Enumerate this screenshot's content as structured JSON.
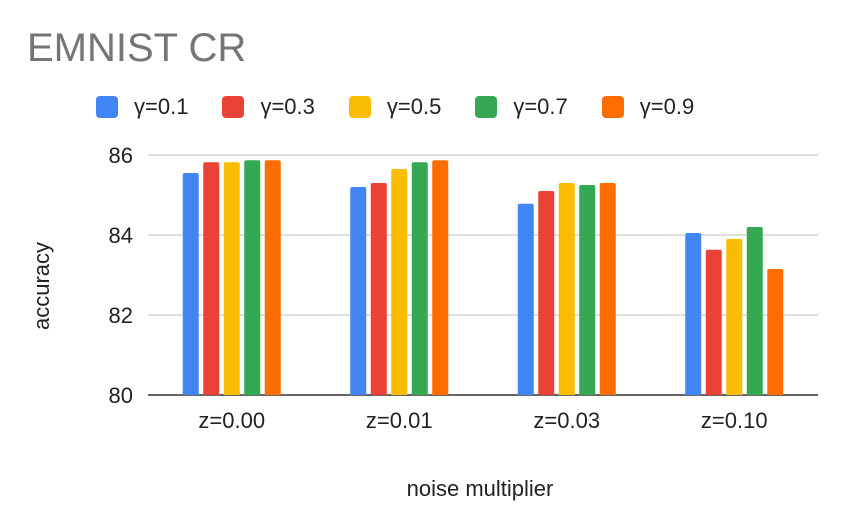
{
  "chart_data": {
    "type": "bar",
    "title": "EMNIST CR",
    "xlabel": "noise multiplier",
    "ylabel": "accuracy",
    "categories": [
      "z=0.00",
      "z=0.01",
      "z=0.03",
      "z=0.10"
    ],
    "ylim": [
      80,
      86
    ],
    "yticks": [
      80,
      82,
      84,
      86
    ],
    "grid": true,
    "legend_position": "top",
    "series": [
      {
        "name": "γ=0.1",
        "color": "#4285F4",
        "values": [
          85.55,
          85.2,
          84.78,
          84.05
        ]
      },
      {
        "name": "γ=0.3",
        "color": "#EA4335",
        "values": [
          85.82,
          85.3,
          85.1,
          83.63
        ]
      },
      {
        "name": "γ=0.5",
        "color": "#FBBC04",
        "values": [
          85.82,
          85.65,
          85.3,
          83.9
        ]
      },
      {
        "name": "γ=0.7",
        "color": "#34A853",
        "values": [
          85.87,
          85.82,
          85.25,
          84.2
        ]
      },
      {
        "name": "γ=0.9",
        "color": "#FF6D01",
        "values": [
          85.87,
          85.87,
          85.3,
          83.15
        ]
      }
    ]
  }
}
